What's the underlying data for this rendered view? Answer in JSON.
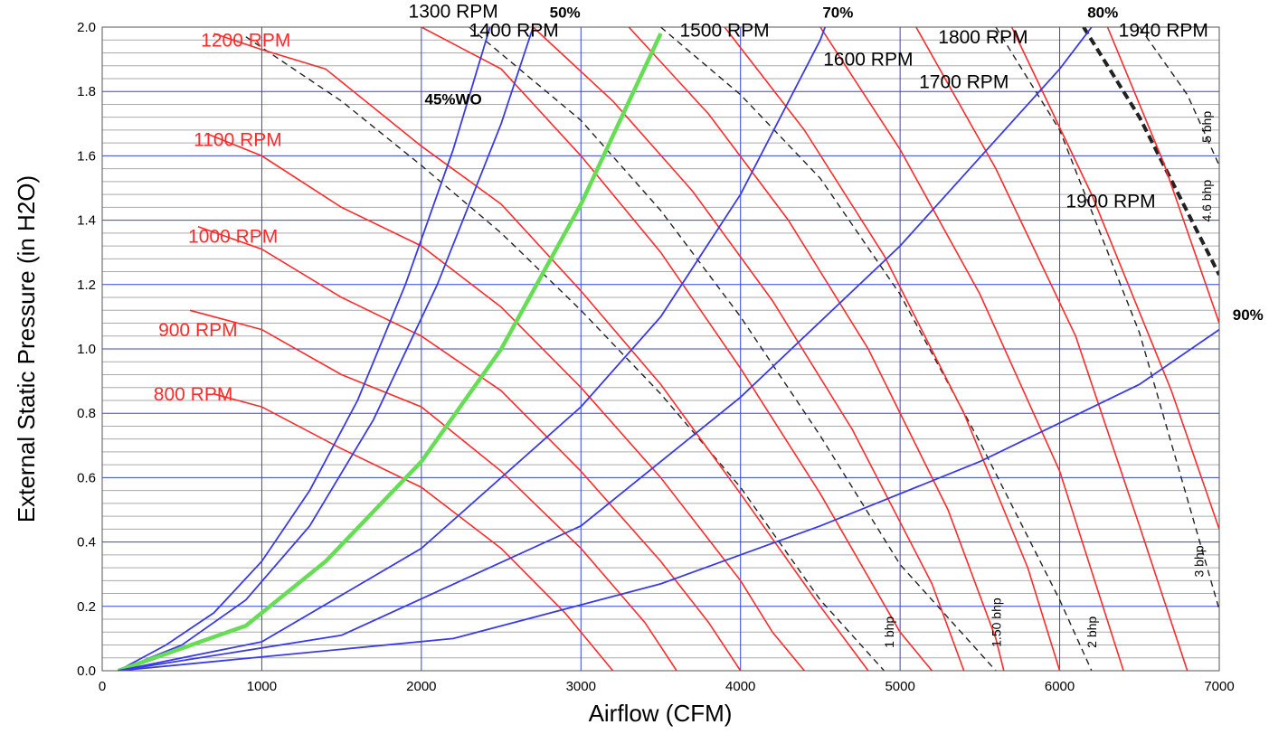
{
  "chart_data": {
    "type": "line",
    "title": "",
    "xlabel": "Airflow (CFM)",
    "ylabel": "External Static Pressure (in H2O)",
    "xlim": [
      0,
      7000
    ],
    "ylim": [
      0,
      2.0
    ],
    "x_ticks": [
      "0",
      "1000",
      "2000",
      "3000",
      "4000",
      "5000",
      "6000",
      "7000"
    ],
    "y_ticks": [
      "0.0",
      "0.2",
      "0.4",
      "0.6",
      "0.8",
      "1.0",
      "1.2",
      "1.4",
      "1.6",
      "1.8",
      "2.0"
    ],
    "grid": true,
    "colors": {
      "rpm": "#ff2a2a",
      "system": "#3a3ae6",
      "highlight": "#66dd55",
      "bhp": "#222222",
      "grid_major": "#3344dd",
      "grid_minor": "#aaaaaa"
    },
    "rpm_curves": [
      {
        "name": "800 RPM",
        "points": [
          [
            700,
            0.86
          ],
          [
            1000,
            0.82
          ],
          [
            1500,
            0.69
          ],
          [
            2000,
            0.57
          ],
          [
            2500,
            0.38
          ],
          [
            2900,
            0.18
          ],
          [
            3200,
            0.0
          ]
        ]
      },
      {
        "name": "900 RPM",
        "points": [
          [
            550,
            1.12
          ],
          [
            1000,
            1.06
          ],
          [
            1500,
            0.92
          ],
          [
            2000,
            0.82
          ],
          [
            2500,
            0.62
          ],
          [
            3000,
            0.38
          ],
          [
            3400,
            0.15
          ],
          [
            3600,
            0.0
          ]
        ]
      },
      {
        "name": "1000 RPM",
        "points": [
          [
            600,
            1.38
          ],
          [
            1000,
            1.31
          ],
          [
            1500,
            1.16
          ],
          [
            2000,
            1.04
          ],
          [
            2500,
            0.87
          ],
          [
            3000,
            0.62
          ],
          [
            3500,
            0.34
          ],
          [
            3800,
            0.15
          ],
          [
            4000,
            0.0
          ]
        ]
      },
      {
        "name": "1100 RPM",
        "points": [
          [
            650,
            1.67
          ],
          [
            1000,
            1.6
          ],
          [
            1500,
            1.44
          ],
          [
            2000,
            1.32
          ],
          [
            2500,
            1.13
          ],
          [
            3000,
            0.88
          ],
          [
            3500,
            0.6
          ],
          [
            4000,
            0.28
          ],
          [
            4200,
            0.12
          ],
          [
            4400,
            0.0
          ]
        ]
      },
      {
        "name": "1200 RPM",
        "points": [
          [
            700,
            1.98
          ],
          [
            1000,
            1.93
          ],
          [
            1400,
            1.87
          ],
          [
            2000,
            1.63
          ],
          [
            2500,
            1.45
          ],
          [
            3000,
            1.18
          ],
          [
            3500,
            0.89
          ],
          [
            4000,
            0.55
          ],
          [
            4500,
            0.2
          ],
          [
            4800,
            0.0
          ]
        ]
      },
      {
        "name": "1300 RPM",
        "points": [
          [
            2000,
            2.0
          ],
          [
            2500,
            1.87
          ],
          [
            3000,
            1.6
          ],
          [
            3500,
            1.3
          ],
          [
            4000,
            0.94
          ],
          [
            4500,
            0.55
          ],
          [
            5000,
            0.12
          ],
          [
            5200,
            0.0
          ]
        ]
      },
      {
        "name": "1400 RPM",
        "points": [
          [
            2700,
            2.0
          ],
          [
            3200,
            1.77
          ],
          [
            3700,
            1.49
          ],
          [
            4200,
            1.15
          ],
          [
            4700,
            0.75
          ],
          [
            5200,
            0.27
          ],
          [
            5400,
            0.0
          ]
        ]
      },
      {
        "name": "1500 RPM",
        "points": [
          [
            3300,
            2.0
          ],
          [
            3800,
            1.73
          ],
          [
            4300,
            1.4
          ],
          [
            4800,
            1.0
          ],
          [
            5300,
            0.5
          ],
          [
            5600,
            0.1
          ],
          [
            5650,
            0.0
          ]
        ]
      },
      {
        "name": "1600 RPM",
        "points": [
          [
            3900,
            2.0
          ],
          [
            4400,
            1.68
          ],
          [
            4900,
            1.29
          ],
          [
            5400,
            0.8
          ],
          [
            5800,
            0.32
          ],
          [
            6000,
            0.0
          ]
        ]
      },
      {
        "name": "1700 RPM",
        "points": [
          [
            4500,
            2.0
          ],
          [
            5000,
            1.62
          ],
          [
            5500,
            1.17
          ],
          [
            6000,
            0.62
          ],
          [
            6400,
            0.0
          ]
        ]
      },
      {
        "name": "1800 RPM",
        "points": [
          [
            5100,
            2.0
          ],
          [
            5600,
            1.56
          ],
          [
            6100,
            1.04
          ],
          [
            6500,
            0.45
          ],
          [
            6800,
            0.0
          ]
        ]
      },
      {
        "name": "1900 RPM",
        "points": [
          [
            5700,
            2.0
          ],
          [
            6200,
            1.48
          ],
          [
            6700,
            0.87
          ],
          [
            7000,
            0.44
          ]
        ]
      },
      {
        "name": "1940 RPM",
        "points": [
          [
            6300,
            2.0
          ],
          [
            6650,
            1.58
          ],
          [
            7000,
            1.08
          ]
        ]
      }
    ],
    "system_curves": [
      {
        "name": "45%WO",
        "points": [
          [
            100,
            0.0
          ],
          [
            400,
            0.08
          ],
          [
            700,
            0.18
          ],
          [
            1000,
            0.34
          ],
          [
            1300,
            0.56
          ],
          [
            1600,
            0.84
          ],
          [
            1900,
            1.2
          ],
          [
            2200,
            1.62
          ],
          [
            2430,
            2.0
          ]
        ]
      },
      {
        "name": "50%",
        "points": [
          [
            100,
            0.0
          ],
          [
            500,
            0.08
          ],
          [
            900,
            0.22
          ],
          [
            1300,
            0.45
          ],
          [
            1700,
            0.78
          ],
          [
            2100,
            1.2
          ],
          [
            2500,
            1.7
          ],
          [
            2700,
            2.0
          ]
        ]
      },
      {
        "name": "",
        "highlight": true,
        "points": [
          [
            100,
            0.0
          ],
          [
            500,
            0.07
          ],
          [
            900,
            0.14
          ],
          [
            1400,
            0.34
          ],
          [
            2000,
            0.65
          ],
          [
            2500,
            1.0
          ],
          [
            3000,
            1.45
          ],
          [
            3500,
            1.98
          ]
        ]
      },
      {
        "name": "70%",
        "points": [
          [
            100,
            0.0
          ],
          [
            1000,
            0.09
          ],
          [
            2000,
            0.38
          ],
          [
            3000,
            0.82
          ],
          [
            3500,
            1.1
          ],
          [
            4000,
            1.48
          ],
          [
            4500,
            1.96
          ],
          [
            4530,
            2.0
          ]
        ]
      },
      {
        "name": "80%",
        "points": [
          [
            100,
            0.0
          ],
          [
            1500,
            0.11
          ],
          [
            3000,
            0.45
          ],
          [
            4000,
            0.85
          ],
          [
            5000,
            1.32
          ],
          [
            6000,
            1.87
          ],
          [
            6200,
            2.0
          ]
        ]
      },
      {
        "name": "90%",
        "points": [
          [
            100,
            0.0
          ],
          [
            2200,
            0.1
          ],
          [
            3500,
            0.27
          ],
          [
            4500,
            0.45
          ],
          [
            5500,
            0.65
          ],
          [
            6500,
            0.89
          ],
          [
            7000,
            1.06
          ]
        ]
      }
    ],
    "bhp_curves": [
      {
        "name": "1 bhp",
        "points": [
          [
            900,
            1.97
          ],
          [
            1500,
            1.77
          ],
          [
            2000,
            1.57
          ],
          [
            2500,
            1.36
          ],
          [
            3000,
            1.12
          ],
          [
            3500,
            0.86
          ],
          [
            4000,
            0.57
          ],
          [
            4500,
            0.22
          ],
          [
            4900,
            0.0
          ]
        ]
      },
      {
        "name": "1.50 bhp",
        "points": [
          [
            2300,
            2.0
          ],
          [
            3000,
            1.71
          ],
          [
            3500,
            1.43
          ],
          [
            4000,
            1.1
          ],
          [
            4500,
            0.73
          ],
          [
            5000,
            0.33
          ],
          [
            5600,
            0.0
          ]
        ]
      },
      {
        "name": "2 bhp",
        "points": [
          [
            3500,
            2.0
          ],
          [
            4000,
            1.79
          ],
          [
            4500,
            1.53
          ],
          [
            5000,
            1.17
          ],
          [
            5500,
            0.71
          ],
          [
            6000,
            0.22
          ],
          [
            6200,
            0.0
          ]
        ]
      },
      {
        "name": "3 bhp",
        "points": [
          [
            5600,
            2.0
          ],
          [
            6000,
            1.68
          ],
          [
            6500,
            1.05
          ],
          [
            7000,
            0.19
          ]
        ]
      },
      {
        "name": "4.6 bhp",
        "bold": true,
        "points": [
          [
            6150,
            2.0
          ],
          [
            6500,
            1.72
          ],
          [
            7000,
            1.23
          ]
        ]
      },
      {
        "name": "5 bhp",
        "points": [
          [
            6500,
            2.0
          ],
          [
            6800,
            1.79
          ],
          [
            7000,
            1.57
          ]
        ]
      }
    ],
    "labels": [
      {
        "text": "1300 RPM",
        "x": 2200,
        "y": 2.03,
        "color": "#000000",
        "bold": false
      },
      {
        "text": "50%",
        "x": 2900,
        "y": 2.03,
        "color": "#000000",
        "bold": true
      },
      {
        "text": "1400 RPM",
        "x": 2580,
        "y": 1.97,
        "color": "#000000",
        "bold": false
      },
      {
        "text": "1500 RPM",
        "x": 3900,
        "y": 1.97,
        "color": "#000000",
        "bold": false
      },
      {
        "text": "70%",
        "x": 4610,
        "y": 2.03,
        "color": "#000000",
        "bold": true
      },
      {
        "text": "80%",
        "x": 6270,
        "y": 2.03,
        "color": "#000000",
        "bold": true
      },
      {
        "text": "1940 RPM",
        "x": 6650,
        "y": 1.97,
        "color": "#000000",
        "bold": false
      },
      {
        "text": "1800 RPM",
        "x": 5520,
        "y": 1.95,
        "color": "#000000",
        "bold": false
      },
      {
        "text": "1600 RPM",
        "x": 4800,
        "y": 1.88,
        "color": "#000000",
        "bold": false
      },
      {
        "text": "1700 RPM",
        "x": 5400,
        "y": 1.81,
        "color": "#000000",
        "bold": false
      },
      {
        "text": "1200 RPM",
        "x": 900,
        "y": 1.94,
        "color": "#ff2a2a",
        "bold": false
      },
      {
        "text": "45%WO",
        "x": 2200,
        "y": 1.76,
        "color": "#000000",
        "bold": true
      },
      {
        "text": "1100 RPM",
        "x": 850,
        "y": 1.63,
        "color": "#ff2a2a",
        "bold": false
      },
      {
        "text": "1000 RPM",
        "x": 820,
        "y": 1.33,
        "color": "#ff2a2a",
        "bold": false
      },
      {
        "text": "900 RPM",
        "x": 600,
        "y": 1.04,
        "color": "#ff2a2a",
        "bold": false
      },
      {
        "text": "800 RPM",
        "x": 570,
        "y": 0.84,
        "color": "#ff2a2a",
        "bold": false
      },
      {
        "text": "1900 RPM",
        "x": 6320,
        "y": 1.44,
        "color": "#000000",
        "bold": false
      },
      {
        "text": "90%",
        "x": 7180,
        "y": 1.09,
        "color": "#000000",
        "bold": true
      }
    ],
    "bhp_labels": [
      {
        "text": "1 bhp",
        "x": 4960,
        "y": 0.12
      },
      {
        "text": "1.50 bhp",
        "x": 5630,
        "y": 0.15
      },
      {
        "text": "2 bhp",
        "x": 6230,
        "y": 0.12
      },
      {
        "text": "3 bhp",
        "x": 6900,
        "y": 0.34
      },
      {
        "text": "4.6 bhp",
        "x": 6950,
        "y": 1.46
      },
      {
        "text": "5 bhp",
        "x": 6950,
        "y": 1.69
      }
    ]
  }
}
